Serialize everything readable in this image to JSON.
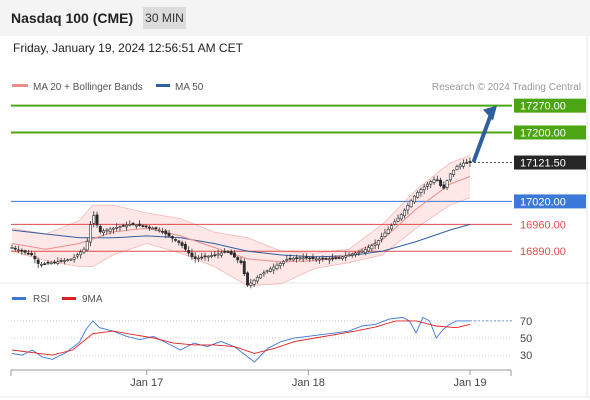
{
  "header": {
    "title": "Nasdaq 100 (CME)",
    "timeframe": "30 MIN",
    "datetime": "Friday, January 19, 2024 12:56:51 AM CET"
  },
  "chart_data": [
    {
      "type": "line",
      "panel": "price",
      "legend": [
        {
          "label": "MA 20 + Bollinger Bands",
          "color": "#f08c8c"
        },
        {
          "label": "MA 50",
          "color": "#2f5f9e"
        }
      ],
      "watermark": "Research © 2024 Trading Central",
      "ylim": [
        16820,
        17290
      ],
      "x_ticks": [
        {
          "label": "Jan 17",
          "i": 40
        },
        {
          "label": "Jan 18",
          "i": 88
        },
        {
          "label": "Jan 19",
          "i": 136
        }
      ],
      "n_bars": 140,
      "levels": [
        {
          "value": 17270.0,
          "label": "17270.00",
          "color": "#4ca614",
          "kind": "resistance"
        },
        {
          "value": 17200.0,
          "label": "17200.00",
          "color": "#4ca614",
          "kind": "resistance"
        },
        {
          "value": 17121.5,
          "label": "17121.50",
          "color": "#262626",
          "kind": "last-price"
        },
        {
          "value": 17020.0,
          "label": "17020.00",
          "color": "#3b78d8",
          "kind": "pivot"
        },
        {
          "value": 16960.0,
          "label": "16960.00",
          "color": "#e14b4b",
          "kind": "support"
        },
        {
          "value": 16890.0,
          "label": "16890.00",
          "color": "#e14b4b",
          "kind": "support"
        }
      ],
      "price_path": [
        [
          0,
          16900
        ],
        [
          6,
          16880
        ],
        [
          8,
          16855
        ],
        [
          12,
          16860
        ],
        [
          18,
          16870
        ],
        [
          22,
          16900
        ],
        [
          24,
          16990
        ],
        [
          26,
          16940
        ],
        [
          30,
          16950
        ],
        [
          35,
          16960
        ],
        [
          40,
          16955
        ],
        [
          44,
          16945
        ],
        [
          50,
          16910
        ],
        [
          54,
          16870
        ],
        [
          60,
          16880
        ],
        [
          64,
          16890
        ],
        [
          68,
          16860
        ],
        [
          70,
          16800
        ],
        [
          74,
          16830
        ],
        [
          78,
          16850
        ],
        [
          80,
          16860
        ],
        [
          82,
          16870
        ],
        [
          86,
          16873
        ],
        [
          90,
          16870
        ],
        [
          96,
          16870
        ],
        [
          100,
          16880
        ],
        [
          104,
          16890
        ],
        [
          108,
          16910
        ],
        [
          112,
          16950
        ],
        [
          116,
          16990
        ],
        [
          120,
          17040
        ],
        [
          124,
          17070
        ],
        [
          126,
          17080
        ],
        [
          128,
          17050
        ],
        [
          130,
          17090
        ],
        [
          132,
          17110
        ],
        [
          134,
          17120
        ],
        [
          136,
          17121.5
        ]
      ],
      "ma20_path": [
        [
          0,
          16910
        ],
        [
          10,
          16895
        ],
        [
          20,
          16910
        ],
        [
          30,
          16940
        ],
        [
          40,
          16950
        ],
        [
          50,
          16930
        ],
        [
          60,
          16900
        ],
        [
          70,
          16870
        ],
        [
          80,
          16862
        ],
        [
          90,
          16865
        ],
        [
          100,
          16880
        ],
        [
          110,
          16920
        ],
        [
          120,
          17000
        ],
        [
          130,
          17065
        ],
        [
          136,
          17085
        ]
      ],
      "ma50_path": [
        [
          0,
          16945
        ],
        [
          10,
          16935
        ],
        [
          20,
          16925
        ],
        [
          30,
          16925
        ],
        [
          40,
          16930
        ],
        [
          50,
          16925
        ],
        [
          60,
          16910
        ],
        [
          70,
          16890
        ],
        [
          80,
          16880
        ],
        [
          90,
          16875
        ],
        [
          100,
          16878
        ],
        [
          110,
          16890
        ],
        [
          120,
          16915
        ],
        [
          130,
          16945
        ],
        [
          136,
          16960
        ]
      ],
      "bb_upper_path": [
        [
          0,
          16950
        ],
        [
          10,
          16935
        ],
        [
          20,
          16970
        ],
        [
          24,
          17010
        ],
        [
          30,
          17010
        ],
        [
          40,
          16990
        ],
        [
          50,
          16975
        ],
        [
          60,
          16940
        ],
        [
          70,
          16925
        ],
        [
          80,
          16890
        ],
        [
          90,
          16885
        ],
        [
          100,
          16895
        ],
        [
          110,
          16960
        ],
        [
          120,
          17050
        ],
        [
          130,
          17120
        ],
        [
          136,
          17140
        ]
      ],
      "bb_lower_path": [
        [
          0,
          16890
        ],
        [
          10,
          16865
        ],
        [
          20,
          16850
        ],
        [
          24,
          16850
        ],
        [
          30,
          16880
        ],
        [
          40,
          16910
        ],
        [
          50,
          16885
        ],
        [
          60,
          16850
        ],
        [
          70,
          16800
        ],
        [
          80,
          16805
        ],
        [
          90,
          16845
        ],
        [
          100,
          16860
        ],
        [
          110,
          16880
        ],
        [
          120,
          16950
        ],
        [
          130,
          17010
        ],
        [
          136,
          17030
        ]
      ],
      "projection": {
        "from": [
          136,
          17121.5
        ],
        "to": [
          144,
          17265
        ]
      }
    },
    {
      "type": "line",
      "panel": "rsi",
      "legend": [
        {
          "label": "RSI",
          "color": "#3b78d8"
        },
        {
          "label": "9MA",
          "color": "#e02020"
        }
      ],
      "ylim": [
        15,
        85
      ],
      "y_ticks": [
        {
          "value": 70,
          "label": "70"
        },
        {
          "value": 50,
          "label": "50"
        },
        {
          "value": 30,
          "label": "30"
        }
      ],
      "rsi_path": [
        [
          0,
          32
        ],
        [
          3,
          30
        ],
        [
          6,
          36
        ],
        [
          9,
          28
        ],
        [
          12,
          25
        ],
        [
          16,
          33
        ],
        [
          20,
          45
        ],
        [
          22,
          60
        ],
        [
          24,
          70
        ],
        [
          26,
          62
        ],
        [
          30,
          58
        ],
        [
          34,
          52
        ],
        [
          38,
          48
        ],
        [
          42,
          52
        ],
        [
          46,
          44
        ],
        [
          50,
          36
        ],
        [
          54,
          44
        ],
        [
          58,
          40
        ],
        [
          62,
          46
        ],
        [
          66,
          40
        ],
        [
          70,
          28
        ],
        [
          72,
          22
        ],
        [
          76,
          38
        ],
        [
          80,
          46
        ],
        [
          84,
          50
        ],
        [
          88,
          52
        ],
        [
          92,
          54
        ],
        [
          96,
          56
        ],
        [
          100,
          58
        ],
        [
          104,
          64
        ],
        [
          108,
          66
        ],
        [
          112,
          72
        ],
        [
          116,
          74
        ],
        [
          118,
          70
        ],
        [
          120,
          56
        ],
        [
          122,
          74
        ],
        [
          124,
          70
        ],
        [
          126,
          50
        ],
        [
          128,
          60
        ],
        [
          130,
          66
        ],
        [
          132,
          70
        ],
        [
          134,
          70
        ],
        [
          136,
          70
        ]
      ],
      "ma9_path": [
        [
          0,
          36
        ],
        [
          6,
          33
        ],
        [
          12,
          30
        ],
        [
          18,
          36
        ],
        [
          24,
          55
        ],
        [
          30,
          58
        ],
        [
          36,
          54
        ],
        [
          42,
          50
        ],
        [
          48,
          44
        ],
        [
          54,
          42
        ],
        [
          60,
          42
        ],
        [
          66,
          40
        ],
        [
          72,
          32
        ],
        [
          78,
          38
        ],
        [
          84,
          46
        ],
        [
          90,
          50
        ],
        [
          96,
          54
        ],
        [
          102,
          58
        ],
        [
          108,
          63
        ],
        [
          114,
          70
        ],
        [
          120,
          70
        ],
        [
          126,
          64
        ],
        [
          132,
          62
        ],
        [
          136,
          66
        ]
      ]
    }
  ]
}
